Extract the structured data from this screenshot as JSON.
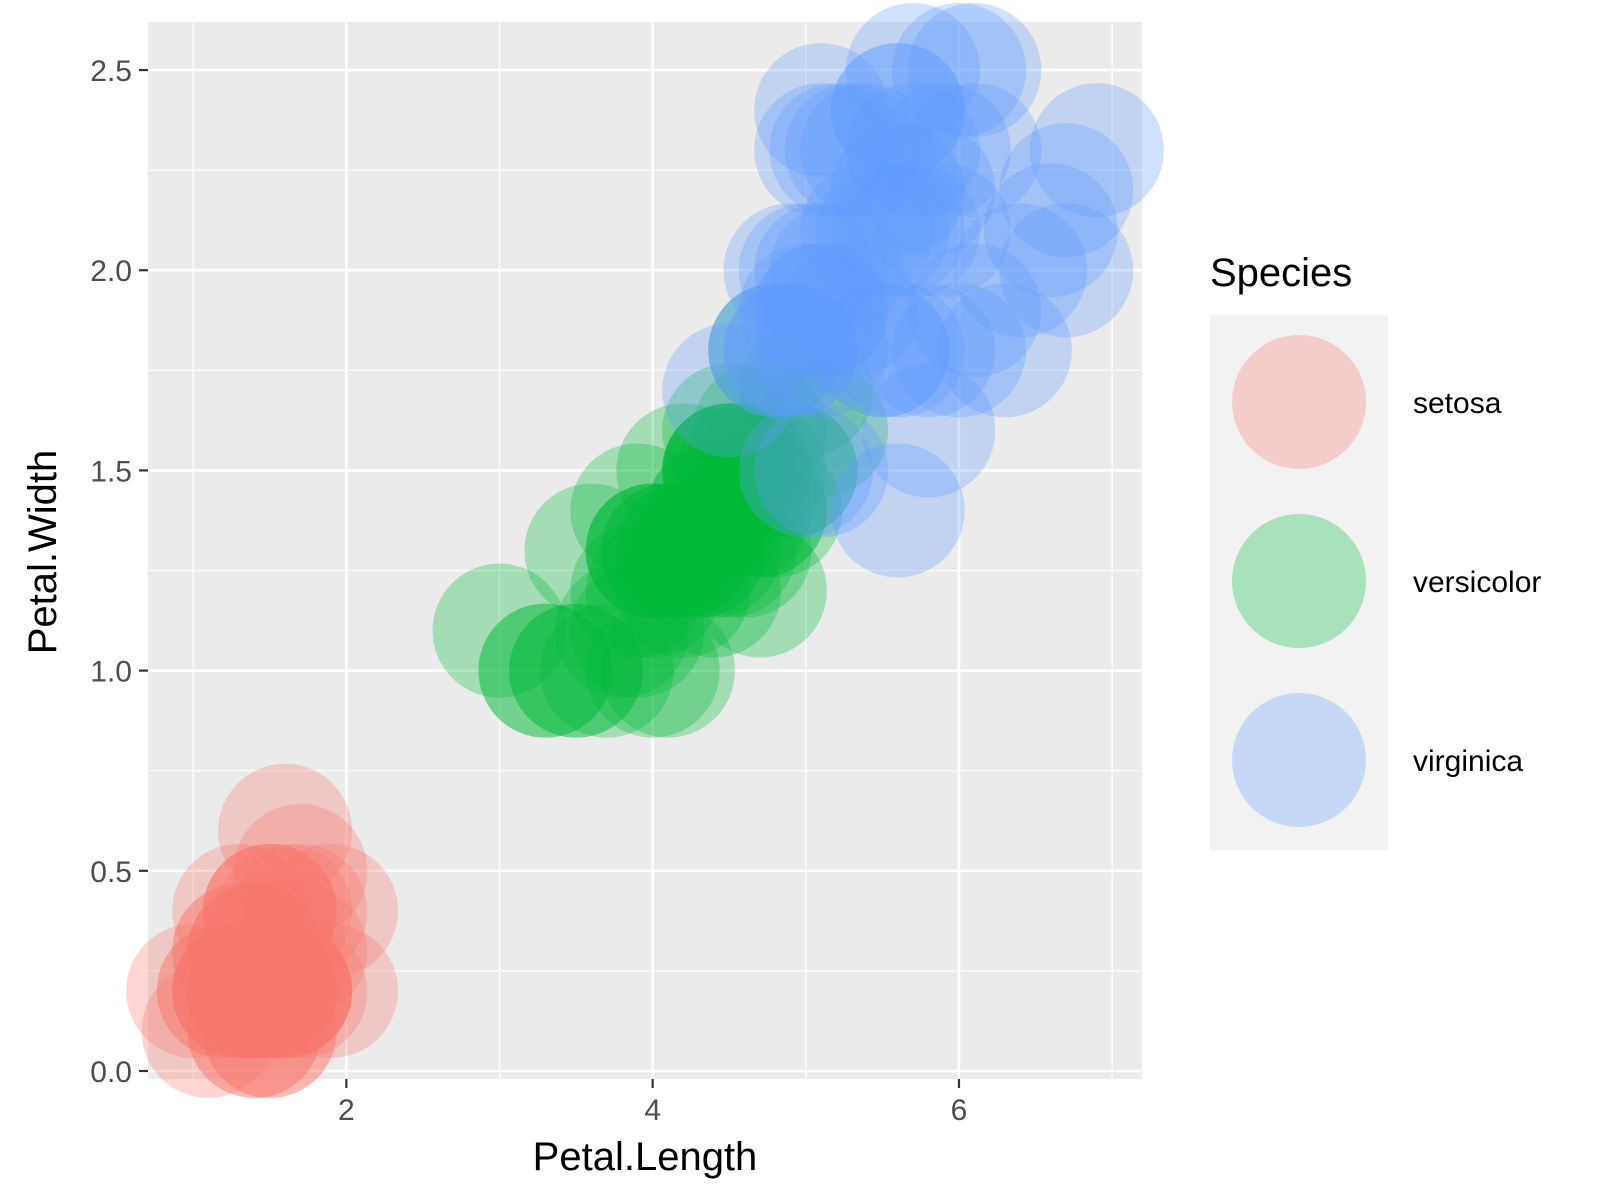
{
  "chart_data": {
    "type": "scatter",
    "title": "",
    "xlabel": "Petal.Length",
    "ylabel": "Petal.Width",
    "xlim": [
      0.705,
      7.195
    ],
    "ylim": [
      -0.02,
      2.62
    ],
    "x_ticks": [
      2,
      4,
      6
    ],
    "x_tick_labels": [
      "2",
      "4",
      "6"
    ],
    "y_ticks": [
      0.0,
      0.5,
      1.0,
      1.5,
      2.0,
      2.5
    ],
    "y_tick_labels": [
      "0.0",
      "0.5",
      "1.0",
      "1.5",
      "2.0",
      "2.5"
    ],
    "grid": true,
    "legend": {
      "title": "Species",
      "position": "right"
    },
    "series": [
      {
        "name": "setosa",
        "color": "#F8766D",
        "points": [
          [
            1.4,
            0.2
          ],
          [
            1.4,
            0.2
          ],
          [
            1.3,
            0.2
          ],
          [
            1.5,
            0.2
          ],
          [
            1.4,
            0.2
          ],
          [
            1.7,
            0.4
          ],
          [
            1.4,
            0.3
          ],
          [
            1.5,
            0.2
          ],
          [
            1.4,
            0.2
          ],
          [
            1.5,
            0.1
          ],
          [
            1.5,
            0.2
          ],
          [
            1.6,
            0.2
          ],
          [
            1.4,
            0.1
          ],
          [
            1.1,
            0.1
          ],
          [
            1.2,
            0.2
          ],
          [
            1.5,
            0.4
          ],
          [
            1.3,
            0.4
          ],
          [
            1.4,
            0.3
          ],
          [
            1.7,
            0.3
          ],
          [
            1.5,
            0.3
          ],
          [
            1.7,
            0.2
          ],
          [
            1.5,
            0.4
          ],
          [
            1.0,
            0.2
          ],
          [
            1.7,
            0.5
          ],
          [
            1.9,
            0.2
          ],
          [
            1.6,
            0.2
          ],
          [
            1.6,
            0.4
          ],
          [
            1.5,
            0.2
          ],
          [
            1.4,
            0.2
          ],
          [
            1.6,
            0.2
          ],
          [
            1.6,
            0.2
          ],
          [
            1.5,
            0.4
          ],
          [
            1.5,
            0.1
          ],
          [
            1.4,
            0.2
          ],
          [
            1.5,
            0.2
          ],
          [
            1.2,
            0.2
          ],
          [
            1.3,
            0.2
          ],
          [
            1.4,
            0.1
          ],
          [
            1.3,
            0.2
          ],
          [
            1.5,
            0.2
          ],
          [
            1.3,
            0.3
          ],
          [
            1.3,
            0.3
          ],
          [
            1.3,
            0.2
          ],
          [
            1.6,
            0.6
          ],
          [
            1.9,
            0.4
          ],
          [
            1.4,
            0.3
          ],
          [
            1.6,
            0.2
          ],
          [
            1.4,
            0.2
          ],
          [
            1.5,
            0.2
          ],
          [
            1.4,
            0.2
          ]
        ]
      },
      {
        "name": "versicolor",
        "color": "#00BA38",
        "points": [
          [
            4.7,
            1.4
          ],
          [
            4.5,
            1.5
          ],
          [
            4.9,
            1.5
          ],
          [
            4.0,
            1.3
          ],
          [
            4.6,
            1.5
          ],
          [
            4.5,
            1.3
          ],
          [
            4.7,
            1.6
          ],
          [
            3.3,
            1.0
          ],
          [
            4.6,
            1.3
          ],
          [
            3.9,
            1.4
          ],
          [
            3.5,
            1.0
          ],
          [
            4.2,
            1.5
          ],
          [
            4.0,
            1.0
          ],
          [
            4.7,
            1.4
          ],
          [
            3.6,
            1.3
          ],
          [
            4.4,
            1.4
          ],
          [
            4.5,
            1.5
          ],
          [
            4.1,
            1.0
          ],
          [
            4.5,
            1.5
          ],
          [
            3.9,
            1.1
          ],
          [
            4.8,
            1.8
          ],
          [
            4.0,
            1.3
          ],
          [
            4.9,
            1.5
          ],
          [
            4.7,
            1.2
          ],
          [
            4.3,
            1.3
          ],
          [
            4.4,
            1.4
          ],
          [
            4.8,
            1.4
          ],
          [
            5.0,
            1.7
          ],
          [
            4.5,
            1.5
          ],
          [
            3.5,
            1.0
          ],
          [
            3.8,
            1.1
          ],
          [
            3.7,
            1.0
          ],
          [
            3.9,
            1.2
          ],
          [
            5.1,
            1.6
          ],
          [
            4.5,
            1.5
          ],
          [
            4.5,
            1.6
          ],
          [
            4.7,
            1.5
          ],
          [
            4.4,
            1.3
          ],
          [
            4.1,
            1.3
          ],
          [
            4.0,
            1.3
          ],
          [
            4.4,
            1.2
          ],
          [
            4.6,
            1.4
          ],
          [
            4.0,
            1.2
          ],
          [
            3.3,
            1.0
          ],
          [
            4.2,
            1.3
          ],
          [
            4.2,
            1.2
          ],
          [
            4.2,
            1.3
          ],
          [
            4.3,
            1.3
          ],
          [
            3.0,
            1.1
          ],
          [
            4.1,
            1.3
          ]
        ]
      },
      {
        "name": "virginica",
        "color": "#619CFF",
        "points": [
          [
            6.0,
            2.5
          ],
          [
            5.1,
            1.9
          ],
          [
            5.9,
            2.1
          ],
          [
            5.6,
            1.8
          ],
          [
            5.8,
            2.2
          ],
          [
            6.6,
            2.1
          ],
          [
            4.5,
            1.7
          ],
          [
            6.3,
            1.8
          ],
          [
            5.8,
            1.8
          ],
          [
            6.1,
            2.5
          ],
          [
            5.1,
            2.0
          ],
          [
            5.3,
            1.9
          ],
          [
            5.5,
            2.1
          ],
          [
            5.0,
            2.0
          ],
          [
            5.1,
            2.4
          ],
          [
            5.3,
            2.3
          ],
          [
            5.5,
            1.8
          ],
          [
            6.7,
            2.2
          ],
          [
            6.9,
            2.3
          ],
          [
            5.0,
            1.5
          ],
          [
            5.7,
            2.3
          ],
          [
            4.9,
            2.0
          ],
          [
            6.7,
            2.0
          ],
          [
            4.9,
            1.8
          ],
          [
            5.7,
            2.1
          ],
          [
            6.0,
            1.8
          ],
          [
            4.8,
            1.8
          ],
          [
            4.9,
            1.8
          ],
          [
            5.6,
            2.1
          ],
          [
            5.8,
            1.6
          ],
          [
            6.1,
            1.9
          ],
          [
            6.4,
            2.0
          ],
          [
            5.6,
            2.2
          ],
          [
            5.1,
            1.5
          ],
          [
            5.6,
            1.4
          ],
          [
            6.1,
            2.3
          ],
          [
            5.6,
            2.4
          ],
          [
            5.5,
            1.8
          ],
          [
            4.8,
            1.8
          ],
          [
            5.4,
            2.1
          ],
          [
            5.6,
            2.4
          ],
          [
            5.1,
            2.3
          ],
          [
            5.1,
            1.9
          ],
          [
            5.9,
            2.3
          ],
          [
            5.7,
            2.5
          ],
          [
            5.2,
            2.3
          ],
          [
            5.0,
            1.9
          ],
          [
            5.2,
            2.0
          ],
          [
            5.4,
            2.3
          ],
          [
            5.1,
            1.8
          ]
        ]
      }
    ]
  }
}
